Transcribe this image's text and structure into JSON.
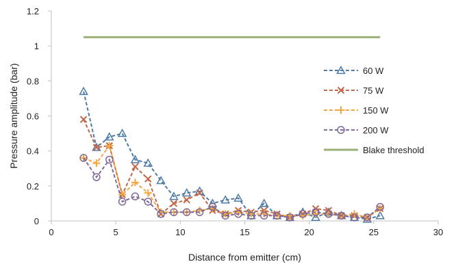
{
  "chart_data": {
    "type": "line",
    "title": "",
    "xlabel": "Distance from emitter (cm)",
    "ylabel": "Pressure amplitude (bar)",
    "xlim": [
      0,
      30
    ],
    "ylim": [
      0,
      1.2
    ],
    "xticks": [
      0,
      5,
      10,
      15,
      20,
      25,
      30
    ],
    "yticks": [
      0,
      0.2,
      0.4,
      0.6,
      0.8,
      1,
      1.2
    ],
    "xtick_labels": [
      "0",
      "5",
      "10",
      "15",
      "20",
      "25",
      "30"
    ],
    "ytick_labels": [
      "0",
      "0.2",
      "0.4",
      "0.6",
      "0.8",
      "1",
      "1.2"
    ],
    "grid": false,
    "legend_position": "right",
    "x": [
      2.5,
      3.5,
      4.5,
      5.5,
      6.5,
      7.5,
      8.5,
      9.5,
      10.5,
      11.5,
      12.5,
      13.5,
      14.5,
      15.5,
      16.5,
      17.5,
      18.5,
      19.5,
      20.5,
      21.5,
      22.5,
      23.5,
      24.5,
      25.5
    ],
    "series": [
      {
        "name": "60 W",
        "color": "#4e7aa6",
        "marker": "triangle",
        "dash": "dashed",
        "values": [
          0.74,
          0.42,
          0.48,
          0.5,
          0.35,
          0.33,
          0.23,
          0.14,
          0.16,
          0.17,
          0.1,
          0.12,
          0.13,
          0.03,
          0.1,
          0.03,
          0.02,
          0.05,
          0.02,
          0.05,
          0.03,
          0.02,
          0.01,
          0.03
        ]
      },
      {
        "name": "75 W",
        "color": "#c0674a",
        "marker": "x",
        "dash": "dashed",
        "values": [
          0.58,
          0.42,
          0.43,
          0.15,
          0.31,
          0.24,
          0.04,
          0.1,
          0.12,
          0.16,
          0.06,
          0.04,
          0.06,
          0.05,
          0.06,
          0.04,
          0.02,
          0.04,
          0.07,
          0.06,
          0.03,
          0.03,
          0.02,
          0.07
        ]
      },
      {
        "name": "150 W",
        "color": "#f2a641",
        "marker": "plus",
        "dash": "dashed",
        "values": [
          0.36,
          0.33,
          0.43,
          0.15,
          0.22,
          0.16,
          0.05,
          0.05,
          0.05,
          0.06,
          0.07,
          0.04,
          0.05,
          0.04,
          0.04,
          0.03,
          0.03,
          0.03,
          0.04,
          0.04,
          0.03,
          0.04,
          0.02,
          0.07
        ]
      },
      {
        "name": "200 W",
        "color": "#7f6898",
        "marker": "circle",
        "dash": "dashed",
        "values": [
          0.36,
          0.25,
          0.35,
          0.11,
          0.14,
          0.11,
          0.04,
          0.05,
          0.05,
          0.05,
          0.08,
          0.03,
          0.04,
          0.03,
          0.03,
          0.03,
          0.02,
          0.04,
          0.05,
          0.04,
          0.03,
          0.02,
          0.02,
          0.08
        ]
      },
      {
        "name": "Blake threshold",
        "color": "#9baf79",
        "marker": "none",
        "dash": "solid",
        "x": [
          2.5,
          25.5
        ],
        "values": [
          1.05,
          1.05
        ]
      }
    ]
  }
}
